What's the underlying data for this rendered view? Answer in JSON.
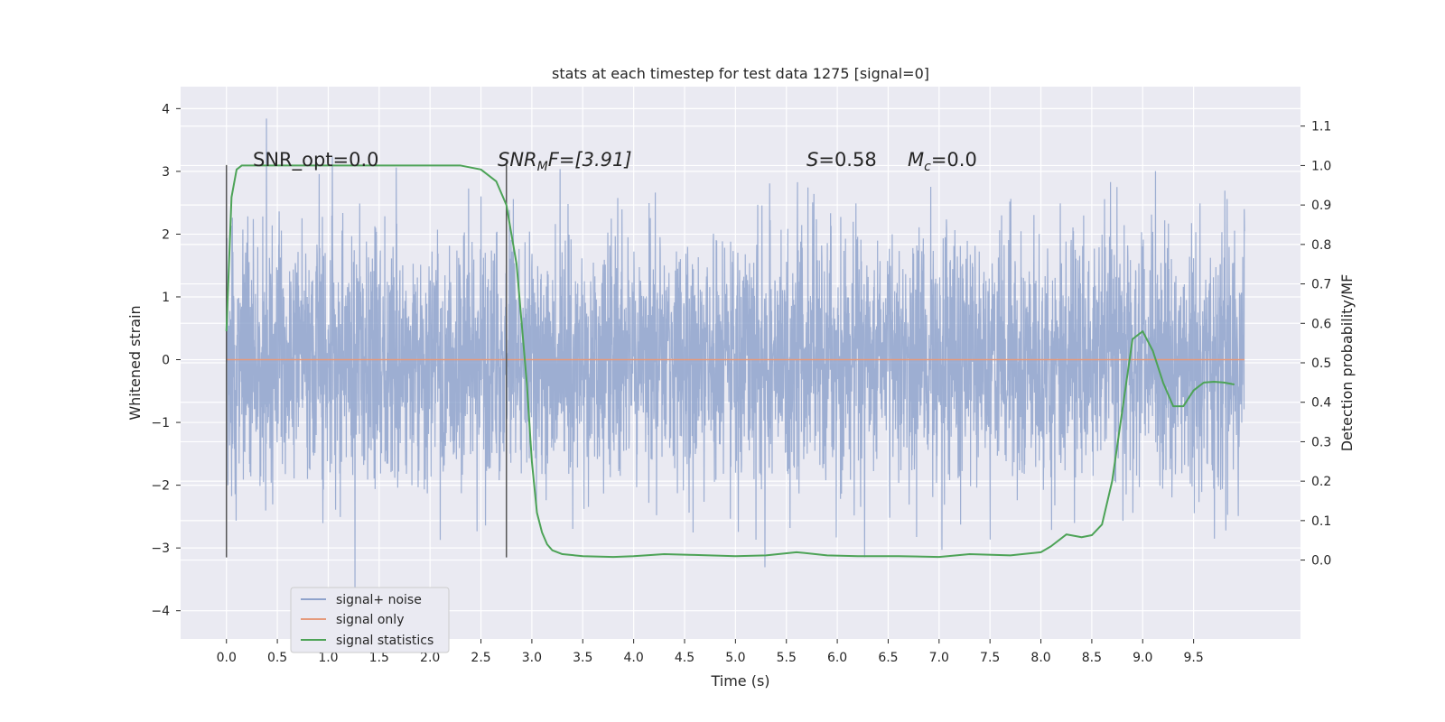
{
  "chart_data": {
    "type": "line",
    "title": "stats at each timestep for test data 1275 [signal=0]",
    "xlabel": "Time (s)",
    "ylabel": "Whitened strain",
    "y2label": "Detection probability/MF",
    "xlim": [
      -0.45,
      10.55
    ],
    "ylim": [
      -4.45,
      4.35
    ],
    "y2lim": [
      -0.2,
      1.2
    ],
    "xticks": [
      "0.0",
      "0.5",
      "1.0",
      "1.5",
      "2.0",
      "2.5",
      "3.0",
      "3.5",
      "4.0",
      "4.5",
      "5.0",
      "5.5",
      "6.0",
      "6.5",
      "7.0",
      "7.5",
      "8.0",
      "8.5",
      "9.0",
      "9.5"
    ],
    "yticks": [
      "4",
      "3",
      "2",
      "1",
      "0",
      "−1",
      "−2",
      "−3",
      "−4"
    ],
    "y2ticks": [
      "1.1",
      "1.0",
      "0.9",
      "0.8",
      "0.7",
      "0.6",
      "0.5",
      "0.4",
      "0.3",
      "0.2",
      "0.1",
      "0.0"
    ],
    "grid": true,
    "legend_position": "lower-left",
    "series": [
      {
        "name": "signal+ noise",
        "color": "#8fa3cc",
        "kind": "noise",
        "x_range": [
          0.0,
          10.0
        ],
        "mean": 0.0,
        "std": 1.0,
        "min": -4.0,
        "max": 4.0
      },
      {
        "name": "signal only",
        "color": "#e59a7c",
        "kind": "flat",
        "x": [
          0.0,
          10.0
        ],
        "y": [
          0.0,
          0.0
        ]
      },
      {
        "name": "signal statistics",
        "color": "#4da357",
        "axis": "right",
        "x": [
          0.0,
          0.05,
          0.1,
          0.15,
          0.2,
          0.3,
          0.5,
          1.0,
          1.5,
          2.0,
          2.3,
          2.5,
          2.65,
          2.75,
          2.85,
          2.9,
          2.95,
          3.0,
          3.05,
          3.1,
          3.15,
          3.2,
          3.3,
          3.5,
          3.8,
          4.0,
          4.3,
          4.6,
          5.0,
          5.3,
          5.6,
          5.9,
          6.2,
          6.6,
          7.0,
          7.3,
          7.7,
          8.0,
          8.1,
          8.25,
          8.4,
          8.5,
          8.6,
          8.7,
          8.8,
          8.9,
          9.0,
          9.1,
          9.2,
          9.3,
          9.4,
          9.5,
          9.6,
          9.7,
          9.8,
          9.9
        ],
        "y": [
          0.58,
          0.92,
          0.99,
          1.0,
          1.0,
          1.0,
          1.0,
          1.0,
          1.0,
          1.0,
          1.0,
          0.99,
          0.96,
          0.9,
          0.75,
          0.6,
          0.45,
          0.25,
          0.12,
          0.07,
          0.04,
          0.025,
          0.015,
          0.01,
          0.008,
          0.01,
          0.015,
          0.013,
          0.01,
          0.012,
          0.02,
          0.012,
          0.01,
          0.01,
          0.008,
          0.015,
          0.012,
          0.02,
          0.035,
          0.065,
          0.058,
          0.063,
          0.09,
          0.2,
          0.38,
          0.56,
          0.58,
          0.53,
          0.45,
          0.39,
          0.39,
          0.43,
          0.45,
          0.452,
          0.45,
          0.445
        ]
      }
    ],
    "markers": [
      {
        "x": 0.0,
        "y_range": [
          -3.15,
          3.1
        ]
      },
      {
        "x": 2.75,
        "y_range": [
          -3.15,
          3.1
        ]
      }
    ],
    "annotations": {
      "snr_opt": "SNR_opt=0.0",
      "snr_mf_base": "SNR",
      "snr_mf_sub": "M",
      "snr_mf_rest": "F=[3.91]",
      "s_base": "S",
      "s_rest": "=0.58",
      "mc_base": "M",
      "mc_sub": "c",
      "mc_rest": "=0.0"
    }
  }
}
